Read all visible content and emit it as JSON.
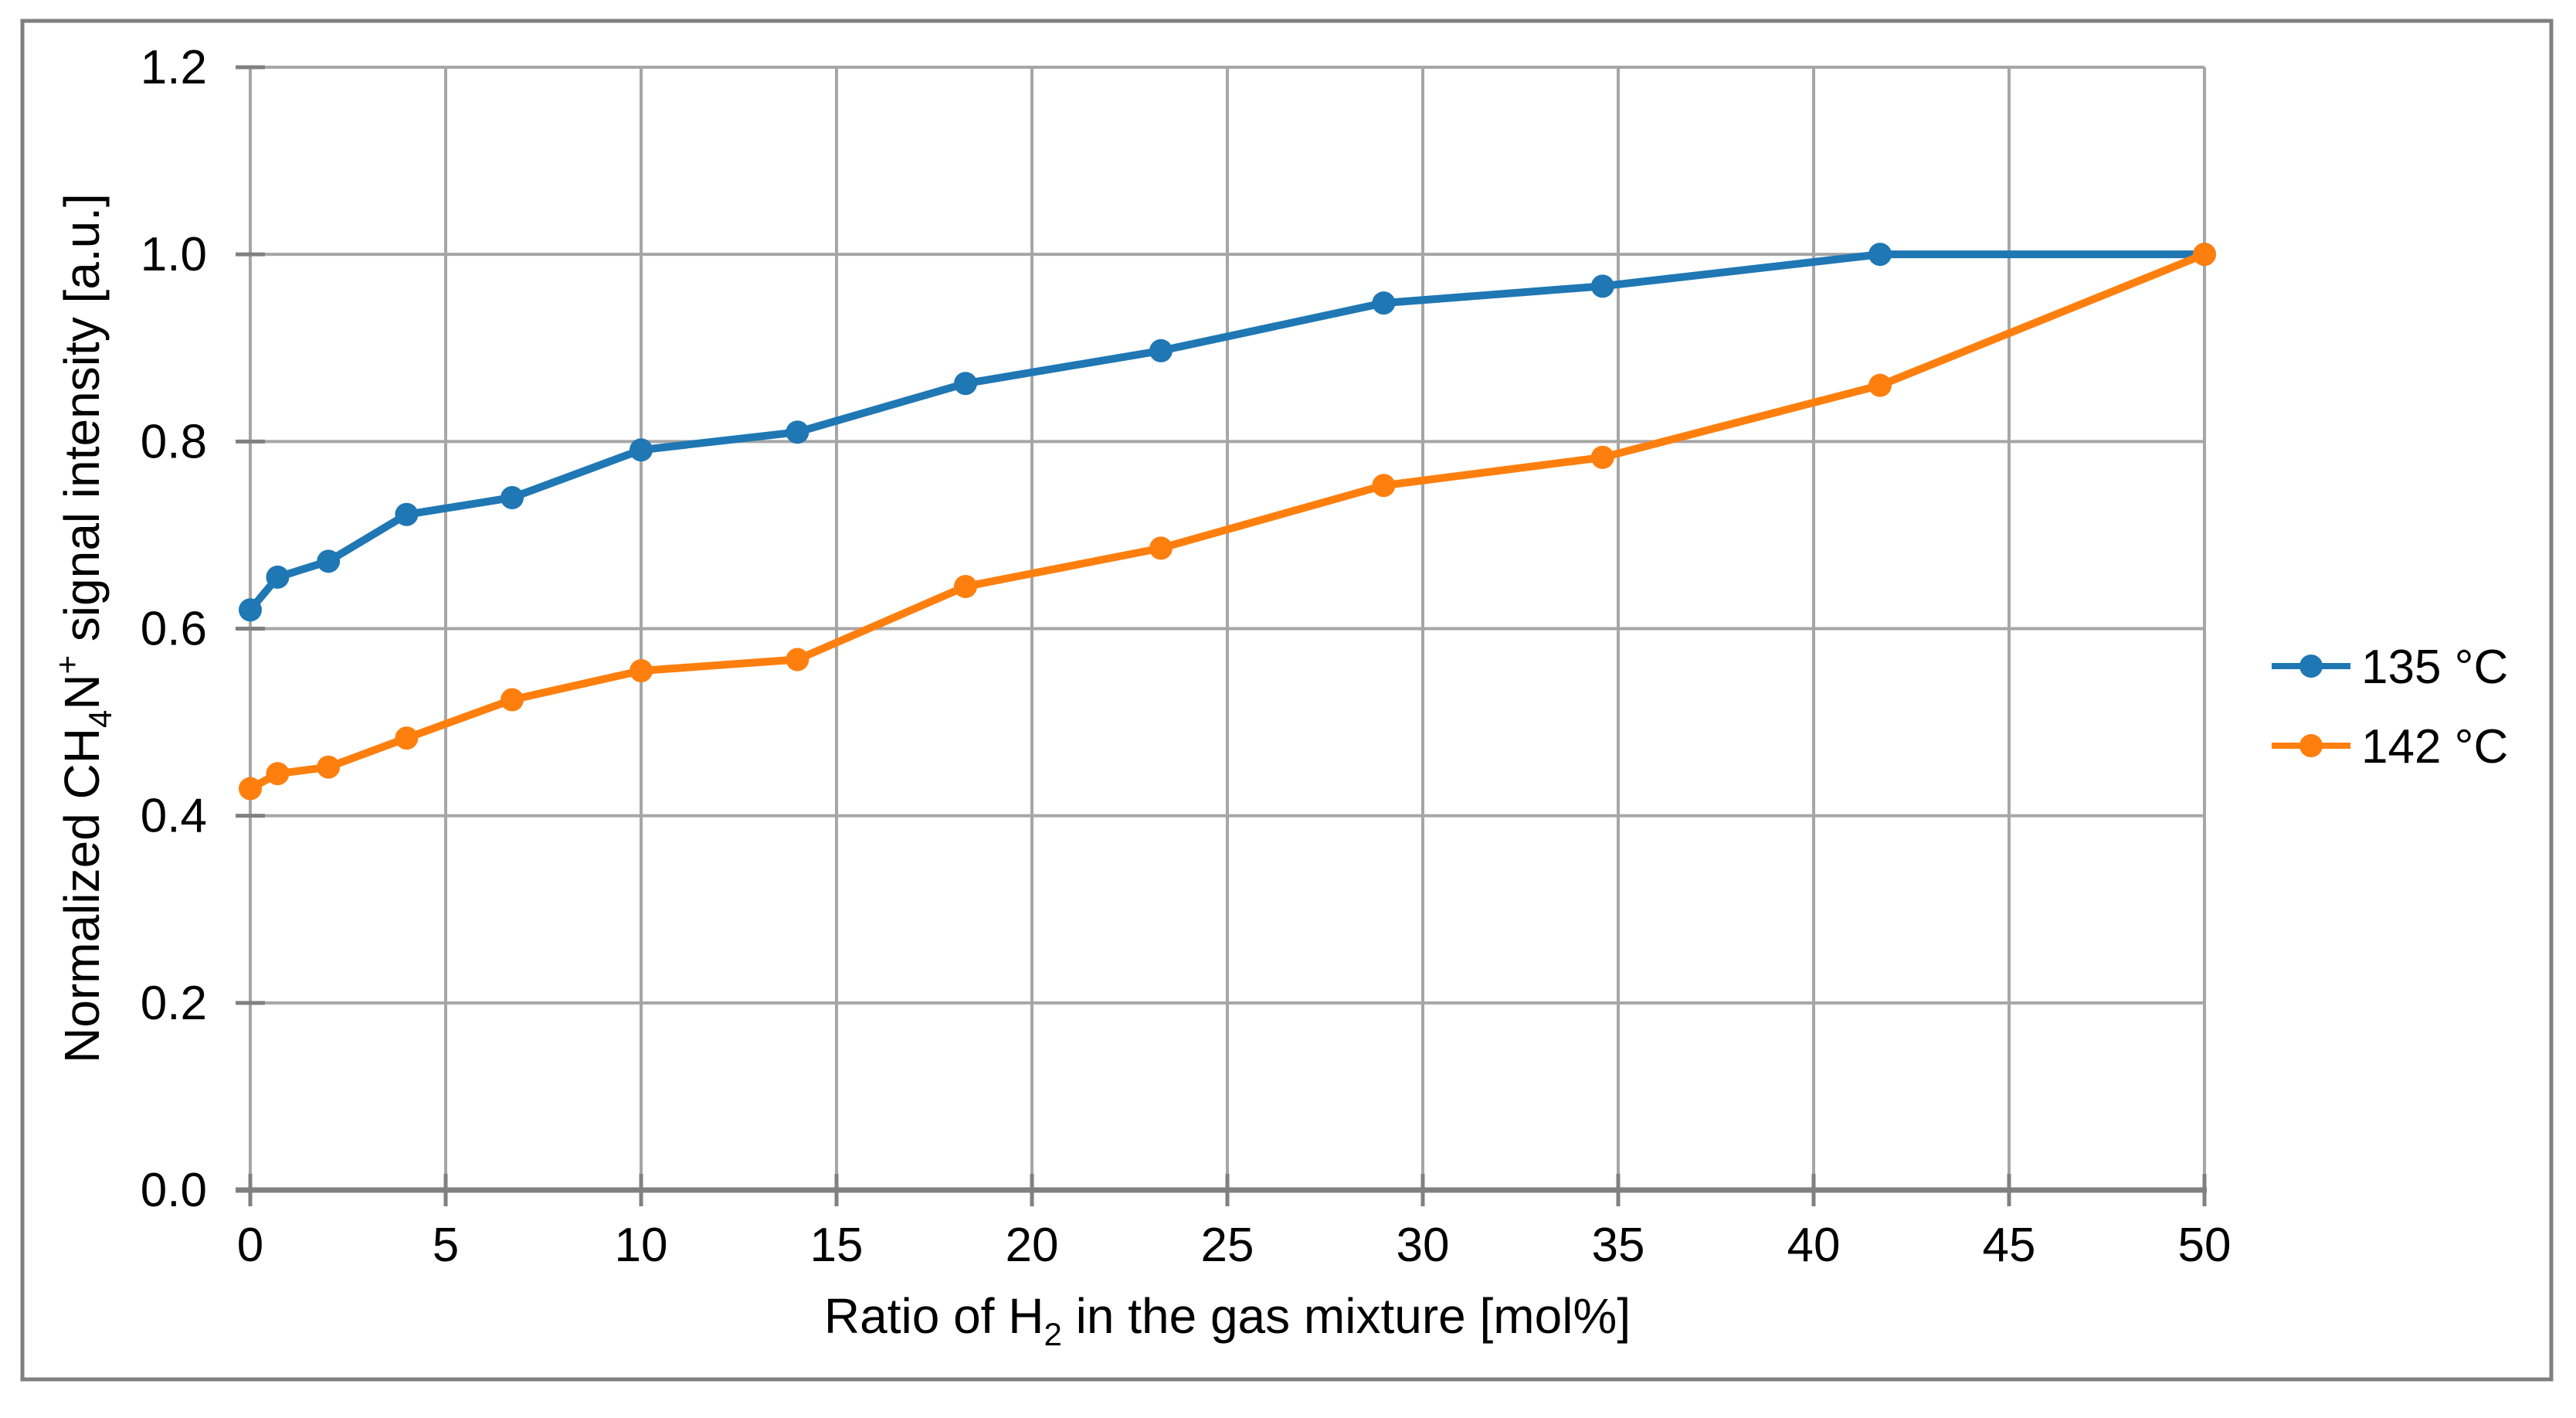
{
  "figure": {
    "background": "#FFFFFF",
    "border_color": "#808080"
  },
  "chart_data": {
    "type": "line",
    "title": "",
    "xlabel": "Ratio of H₂ in the gas mixture [mol%]",
    "ylabel": "Normalized CH₄N⁺ signal intensity [a.u.]",
    "xlabel_parts": [
      {
        "text": "Ratio of H",
        "script": "normal"
      },
      {
        "text": "2",
        "script": "sub"
      },
      {
        "text": " in the gas mixture [mol%]",
        "script": "normal"
      }
    ],
    "ylabel_parts": [
      {
        "text": "Normalized CH",
        "script": "normal"
      },
      {
        "text": "4",
        "script": "sub"
      },
      {
        "text": "N",
        "script": "normal"
      },
      {
        "text": "+",
        "script": "sup"
      },
      {
        "text": " signal intensity [a.u.]",
        "script": "normal"
      }
    ],
    "xlim": [
      0,
      50
    ],
    "ylim": [
      0.0,
      1.2
    ],
    "grid": true,
    "grid_color": "#A6A6A6",
    "axis_color": "#808080",
    "text_color": "#000000",
    "legend_position": "right-outside-middle",
    "marker": "circle",
    "xticks": [
      {
        "v": 0,
        "label": "0"
      },
      {
        "v": 5,
        "label": "5"
      },
      {
        "v": 10,
        "label": "10"
      },
      {
        "v": 15,
        "label": "15"
      },
      {
        "v": 20,
        "label": "20"
      },
      {
        "v": 25,
        "label": "25"
      },
      {
        "v": 30,
        "label": "30"
      },
      {
        "v": 35,
        "label": "35"
      },
      {
        "v": 40,
        "label": "40"
      },
      {
        "v": 45,
        "label": "45"
      },
      {
        "v": 50,
        "label": "50"
      }
    ],
    "yticks": [
      {
        "v": 0.0,
        "label": "0.0"
      },
      {
        "v": 0.2,
        "label": "0.2"
      },
      {
        "v": 0.4,
        "label": "0.4"
      },
      {
        "v": 0.6,
        "label": "0.6"
      },
      {
        "v": 0.8,
        "label": "0.8"
      },
      {
        "v": 1.0,
        "label": "1.0"
      },
      {
        "v": 1.2,
        "label": "1.2"
      }
    ],
    "x": [
      0,
      0.7,
      2,
      4,
      6.7,
      10,
      14,
      18.3,
      23.3,
      29,
      34.6,
      41.7,
      50
    ],
    "series": [
      {
        "name": "135 °C",
        "color": "#1F77B4",
        "values": [
          0.62,
          0.655,
          0.672,
          0.722,
          0.74,
          0.791,
          0.81,
          0.862,
          0.897,
          0.948,
          0.966,
          1.0,
          1.0
        ]
      },
      {
        "name": "142 °C",
        "color": "#FF7F0E",
        "values": [
          0.429,
          0.445,
          0.452,
          0.483,
          0.524,
          0.555,
          0.567,
          0.645,
          0.686,
          0.753,
          0.783,
          0.86,
          1.0
        ]
      }
    ]
  }
}
